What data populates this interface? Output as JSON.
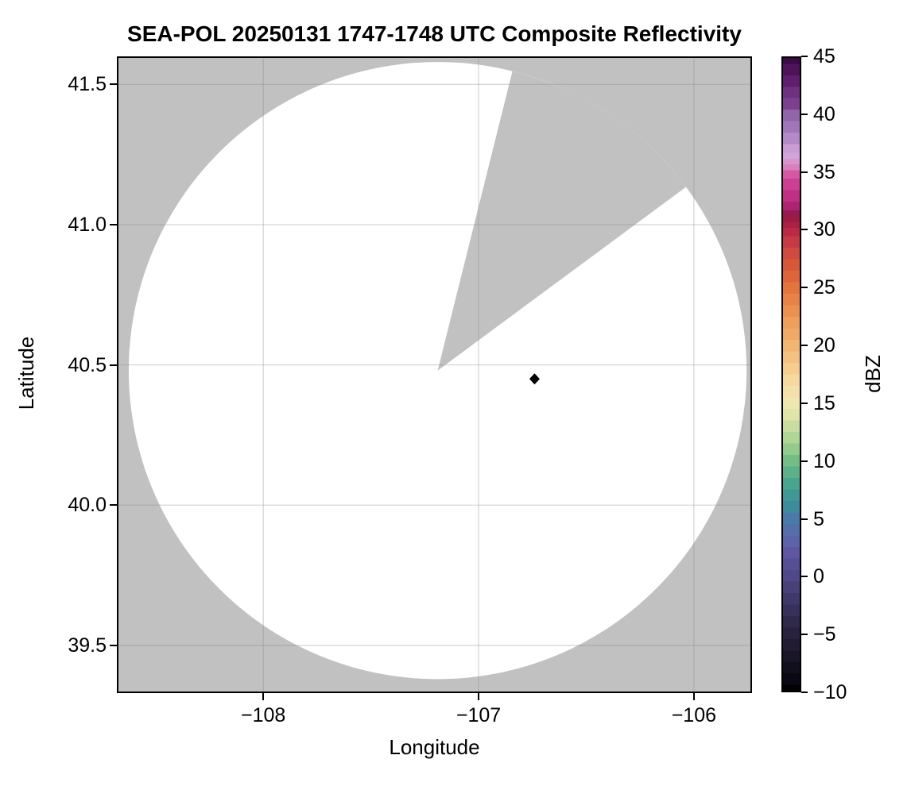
{
  "title": "SEA-POL 20250131 1747-1748 UTC Composite Reflectivity",
  "axes": {
    "xlabel": "Longitude",
    "ylabel": "Latitude",
    "x_tick_labels": [
      "−108",
      "−107",
      "−106"
    ],
    "y_tick_labels": [
      "41.5",
      "41.0",
      "40.5",
      "40.0",
      "39.5"
    ]
  },
  "colorbar": {
    "label": "dBZ",
    "min": -10,
    "max": 45,
    "tick_values": [
      45,
      40,
      35,
      30,
      25,
      20,
      15,
      10,
      5,
      0,
      -5,
      -10
    ],
    "tick_labels": [
      "45",
      "40",
      "35",
      "30",
      "25",
      "20",
      "15",
      "10",
      "5",
      "0",
      "−5",
      "−10"
    ],
    "band_step_dbz": 1,
    "band_anchors": [
      [
        45,
        "#380b46"
      ],
      [
        44,
        "#4e1359"
      ],
      [
        43,
        "#5f1f6e"
      ],
      [
        42,
        "#6e3080"
      ],
      [
        41,
        "#7b4190"
      ],
      [
        40,
        "#9265aa"
      ],
      [
        39,
        "#a176b8"
      ],
      [
        38,
        "#b489c6"
      ],
      [
        37,
        "#cb9dd6"
      ],
      [
        36.5,
        "#d2a4da"
      ],
      [
        36,
        "#d795cb"
      ],
      [
        35.5,
        "#d87fbe"
      ],
      [
        35,
        "#d458a4"
      ],
      [
        34,
        "#cc4093"
      ],
      [
        33,
        "#bf2f84"
      ],
      [
        32,
        "#ac2471"
      ],
      [
        31.5,
        "#951a50"
      ],
      [
        31,
        "#9d1b43"
      ],
      [
        30.5,
        "#ab2142"
      ],
      [
        30,
        "#ba2a45"
      ],
      [
        29,
        "#c53a45"
      ],
      [
        28,
        "#cf4a3f"
      ],
      [
        27,
        "#d75838"
      ],
      [
        26,
        "#dd653b"
      ],
      [
        25,
        "#e2743e"
      ],
      [
        24,
        "#e78347"
      ],
      [
        23,
        "#ea9150"
      ],
      [
        22,
        "#ee9f5c"
      ],
      [
        21,
        "#f0a966"
      ],
      [
        20,
        "#f2b572"
      ],
      [
        19,
        "#f4c280"
      ],
      [
        18,
        "#f5cd8f"
      ],
      [
        17,
        "#f6d99f"
      ],
      [
        16,
        "#f5e0ab"
      ],
      [
        15,
        "#eee7ae"
      ],
      [
        14,
        "#dfe5a8"
      ],
      [
        13,
        "#c8dd9f"
      ],
      [
        12,
        "#aed695"
      ],
      [
        11,
        "#93cb8c"
      ],
      [
        10,
        "#74bd87"
      ],
      [
        9,
        "#5cb08a"
      ],
      [
        8,
        "#4aa48e"
      ],
      [
        7,
        "#3f9894"
      ],
      [
        6,
        "#3d8c9c"
      ],
      [
        5,
        "#4a7aab"
      ],
      [
        4,
        "#5370ab"
      ],
      [
        3,
        "#5b64a8"
      ],
      [
        2,
        "#5d56a2"
      ],
      [
        1,
        "#564f96"
      ],
      [
        0,
        "#4f4889"
      ],
      [
        -1,
        "#474079"
      ],
      [
        -2,
        "#3f386a"
      ],
      [
        -3,
        "#37305b"
      ],
      [
        -4,
        "#2f294c"
      ],
      [
        -5,
        "#28223f"
      ],
      [
        -6,
        "#211c33"
      ],
      [
        -7,
        "#1a1628"
      ],
      [
        -8,
        "#120f1c"
      ],
      [
        -9,
        "#0a0812"
      ],
      [
        -10,
        "#020204"
      ]
    ]
  },
  "colors": {
    "figure_background": "#ffffff",
    "masked_area_gray": "#c1c1c1",
    "coverage_area_white": "#ffffff",
    "gridline": "#8a8a8a",
    "gridline_opacity": 0.35,
    "spine_black": "#000000",
    "marker_black": "#000000"
  },
  "chart_data": {
    "type": "heatmap",
    "subtype": "radar_ppi_composite_reflectivity_map",
    "title": "SEA-POL 20250131 1747-1748 UTC Composite Reflectivity",
    "xlabel": "Longitude",
    "ylabel": "Latitude",
    "xlim": [
      -108.68,
      -105.73
    ],
    "ylim": [
      39.33,
      41.6
    ],
    "x_ticks": [
      -108,
      -107,
      -106
    ],
    "y_ticks": [
      41.5,
      41.0,
      40.5,
      40.0,
      39.5
    ],
    "grid": true,
    "legend": "colorbar-right",
    "colorbar": {
      "label": "dBZ",
      "min": -10,
      "max": 45,
      "tick_step": 5
    },
    "radar_center": {
      "lon": -107.19,
      "lat": 40.48
    },
    "coverage_radius_deg_lat": 1.1,
    "blocked_sector_azimuth_deg": [
      14.0,
      53.5
    ],
    "site_marker": {
      "lon": -106.74,
      "lat": 40.45,
      "shape": "diamond",
      "color": "#000000"
    },
    "echoes_above_min_dbz": []
  }
}
